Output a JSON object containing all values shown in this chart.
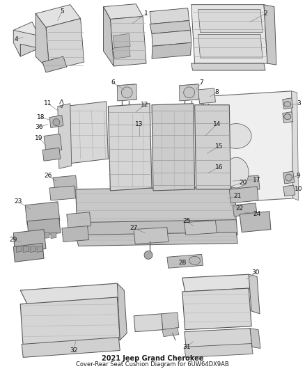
{
  "title": "2021 Jeep Grand Cherokee",
  "subtitle": "Cover-Rear Seat Cushion Diagram for 6UW64DX9AB",
  "bg": "#ffffff",
  "fg": "#1a1a1a",
  "title_fs": 7,
  "sub_fs": 6,
  "line_color": "#888888",
  "lw": 0.5,
  "label_fs": 6.5,
  "part_color": "#e0e0e0",
  "edge_color": "#555555",
  "dark_part": "#c0c0c0",
  "darker_part": "#a8a8a8"
}
